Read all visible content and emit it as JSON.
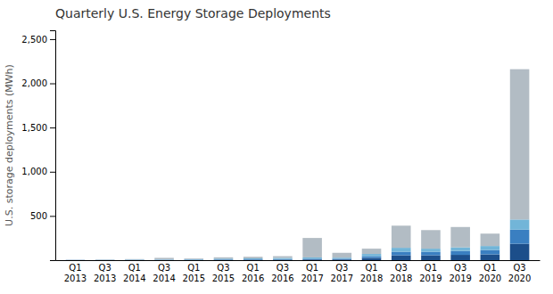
{
  "chart_data": {
    "type": "bar",
    "title": "Quarterly U.S. Energy Storage Deployments",
    "ylabel": "U.S. storage deployments (MWh)",
    "categories": [
      "Q1\n2013",
      "Q3\n2013",
      "Q1\n2014",
      "Q3\n2014",
      "Q1\n2015",
      "Q3\n2015",
      "Q1\n2016",
      "Q3\n2016",
      "Q1\n2017",
      "Q3\n2017",
      "Q1\n2018",
      "Q3\n2018",
      "Q1\n2019",
      "Q3\n2019",
      "Q1\n2020",
      "Q3\n2020"
    ],
    "series": [
      {
        "color": "#1c4e8a",
        "values": [
          1,
          1,
          2,
          2,
          3,
          4,
          5,
          6,
          8,
          8,
          25,
          55,
          55,
          60,
          65,
          185
        ]
      },
      {
        "color": "#3a7fc1",
        "values": [
          1,
          1,
          2,
          2,
          3,
          5,
          5,
          7,
          8,
          8,
          20,
          40,
          40,
          45,
          50,
          160
        ]
      },
      {
        "color": "#72b5d8",
        "values": [
          1,
          2,
          3,
          4,
          5,
          8,
          10,
          12,
          15,
          12,
          25,
          45,
          35,
          40,
          45,
          115
        ]
      },
      {
        "color": "#b2bcc4",
        "values": [
          2,
          4,
          5,
          18,
          8,
          15,
          18,
          20,
          220,
          55,
          60,
          250,
          210,
          230,
          140,
          1700
        ]
      }
    ],
    "stacked": true,
    "ylim": [
      0,
      2600
    ],
    "yticks": [
      500,
      {
        "value": 1000,
        "label": "1,000"
      },
      {
        "value": 1500,
        "label": "1,500"
      },
      {
        "value": 2000,
        "label": "2,000"
      },
      {
        "value": 2500,
        "label": "2,500"
      }
    ],
    "grid": false
  }
}
